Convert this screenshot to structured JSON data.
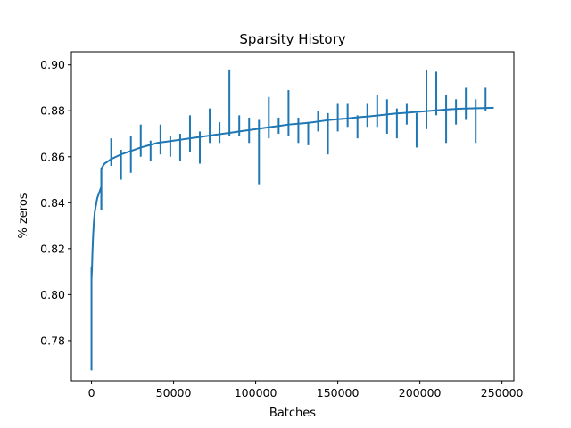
{
  "chart_data": {
    "type": "line",
    "title": "Sparsity History",
    "xlabel": "Batches",
    "ylabel": "% zeros",
    "xlim": [
      -12250,
      257250
    ],
    "ylim": [
      0.7625,
      0.9057
    ],
    "x_ticks": [
      0,
      50000,
      100000,
      150000,
      200000,
      250000
    ],
    "y_ticks": [
      0.78,
      0.8,
      0.82,
      0.84,
      0.86,
      0.88,
      0.9
    ],
    "x_tick_labels": [
      "0",
      "50000",
      "100000",
      "150000",
      "200000",
      "250000"
    ],
    "y_tick_labels": [
      "0.78",
      "0.80",
      "0.82",
      "0.84",
      "0.86",
      "0.88",
      "0.90"
    ],
    "grid": false,
    "legend": "none",
    "series_color": "#1f77b4",
    "series": [
      {
        "x": [
          0,
          0,
          0,
          300,
          500,
          1000,
          1500,
          2000,
          2500,
          3000,
          3500,
          4000,
          4500,
          5000,
          5500,
          6000,
          6000,
          6000,
          6200,
          7000,
          8000,
          10000,
          12000,
          15000,
          18000,
          22000,
          26000,
          30000,
          35000,
          40000,
          45000,
          50000,
          55000,
          60000,
          65000,
          70000,
          75000,
          80000,
          85000,
          90000,
          95000,
          100000,
          105000,
          110000,
          115000,
          120000,
          125000,
          130000,
          135000,
          140000,
          145000,
          150000,
          155000,
          160000,
          165000,
          170000,
          175000,
          180000,
          185000,
          190000,
          195000,
          200000,
          205000,
          210000,
          215000,
          220000,
          225000,
          230000,
          235000,
          240000,
          245000
        ],
        "y": [
          0.767,
          0.812,
          0.807,
          0.811,
          0.817,
          0.826,
          0.832,
          0.836,
          0.838,
          0.84,
          0.842,
          0.843,
          0.844,
          0.845,
          0.846,
          0.847,
          0.837,
          0.855,
          0.855,
          0.856,
          0.857,
          0.858,
          0.859,
          0.86,
          0.861,
          0.862,
          0.863,
          0.864,
          0.865,
          0.866,
          0.8665,
          0.867,
          0.8675,
          0.868,
          0.8685,
          0.869,
          0.8695,
          0.87,
          0.8705,
          0.871,
          0.8715,
          0.872,
          0.8725,
          0.873,
          0.8735,
          0.874,
          0.8743,
          0.8746,
          0.875,
          0.8755,
          0.876,
          0.8763,
          0.8766,
          0.877,
          0.8773,
          0.8776,
          0.878,
          0.8784,
          0.8788,
          0.879,
          0.8793,
          0.8796,
          0.8799,
          0.8802,
          0.8805,
          0.8807,
          0.8809,
          0.881,
          0.8811,
          0.8812,
          0.8813
        ]
      }
    ],
    "spikes": [
      {
        "x": 6000,
        "y1": 0.837,
        "y2": 0.855
      },
      {
        "x": 12000,
        "y1": 0.856,
        "y2": 0.868
      },
      {
        "x": 18000,
        "y1": 0.85,
        "y2": 0.863
      },
      {
        "x": 24000,
        "y1": 0.853,
        "y2": 0.869
      },
      {
        "x": 30000,
        "y1": 0.86,
        "y2": 0.874
      },
      {
        "x": 36000,
        "y1": 0.858,
        "y2": 0.867
      },
      {
        "x": 42000,
        "y1": 0.861,
        "y2": 0.874
      },
      {
        "x": 48000,
        "y1": 0.86,
        "y2": 0.869
      },
      {
        "x": 54000,
        "y1": 0.858,
        "y2": 0.87
      },
      {
        "x": 60000,
        "y1": 0.862,
        "y2": 0.878
      },
      {
        "x": 66000,
        "y1": 0.857,
        "y2": 0.871
      },
      {
        "x": 72000,
        "y1": 0.866,
        "y2": 0.881
      },
      {
        "x": 78000,
        "y1": 0.866,
        "y2": 0.875
      },
      {
        "x": 84000,
        "y1": 0.869,
        "y2": 0.898
      },
      {
        "x": 90000,
        "y1": 0.869,
        "y2": 0.878
      },
      {
        "x": 96000,
        "y1": 0.866,
        "y2": 0.877
      },
      {
        "x": 102000,
        "y1": 0.848,
        "y2": 0.876
      },
      {
        "x": 108000,
        "y1": 0.868,
        "y2": 0.886
      },
      {
        "x": 114000,
        "y1": 0.87,
        "y2": 0.877
      },
      {
        "x": 120000,
        "y1": 0.869,
        "y2": 0.889
      },
      {
        "x": 126000,
        "y1": 0.866,
        "y2": 0.877
      },
      {
        "x": 132000,
        "y1": 0.865,
        "y2": 0.875
      },
      {
        "x": 138000,
        "y1": 0.871,
        "y2": 0.88
      },
      {
        "x": 144000,
        "y1": 0.861,
        "y2": 0.879
      },
      {
        "x": 150000,
        "y1": 0.871,
        "y2": 0.883
      },
      {
        "x": 156000,
        "y1": 0.873,
        "y2": 0.883
      },
      {
        "x": 162000,
        "y1": 0.868,
        "y2": 0.878
      },
      {
        "x": 168000,
        "y1": 0.873,
        "y2": 0.883
      },
      {
        "x": 174000,
        "y1": 0.873,
        "y2": 0.887
      },
      {
        "x": 180000,
        "y1": 0.87,
        "y2": 0.885
      },
      {
        "x": 186000,
        "y1": 0.868,
        "y2": 0.881
      },
      {
        "x": 192000,
        "y1": 0.874,
        "y2": 0.883
      },
      {
        "x": 198000,
        "y1": 0.864,
        "y2": 0.879
      },
      {
        "x": 204000,
        "y1": 0.872,
        "y2": 0.898
      },
      {
        "x": 210000,
        "y1": 0.878,
        "y2": 0.897
      },
      {
        "x": 216000,
        "y1": 0.866,
        "y2": 0.887
      },
      {
        "x": 222000,
        "y1": 0.874,
        "y2": 0.885
      },
      {
        "x": 228000,
        "y1": 0.876,
        "y2": 0.89
      },
      {
        "x": 234000,
        "y1": 0.866,
        "y2": 0.885
      },
      {
        "x": 240000,
        "y1": 0.88,
        "y2": 0.89
      }
    ]
  }
}
